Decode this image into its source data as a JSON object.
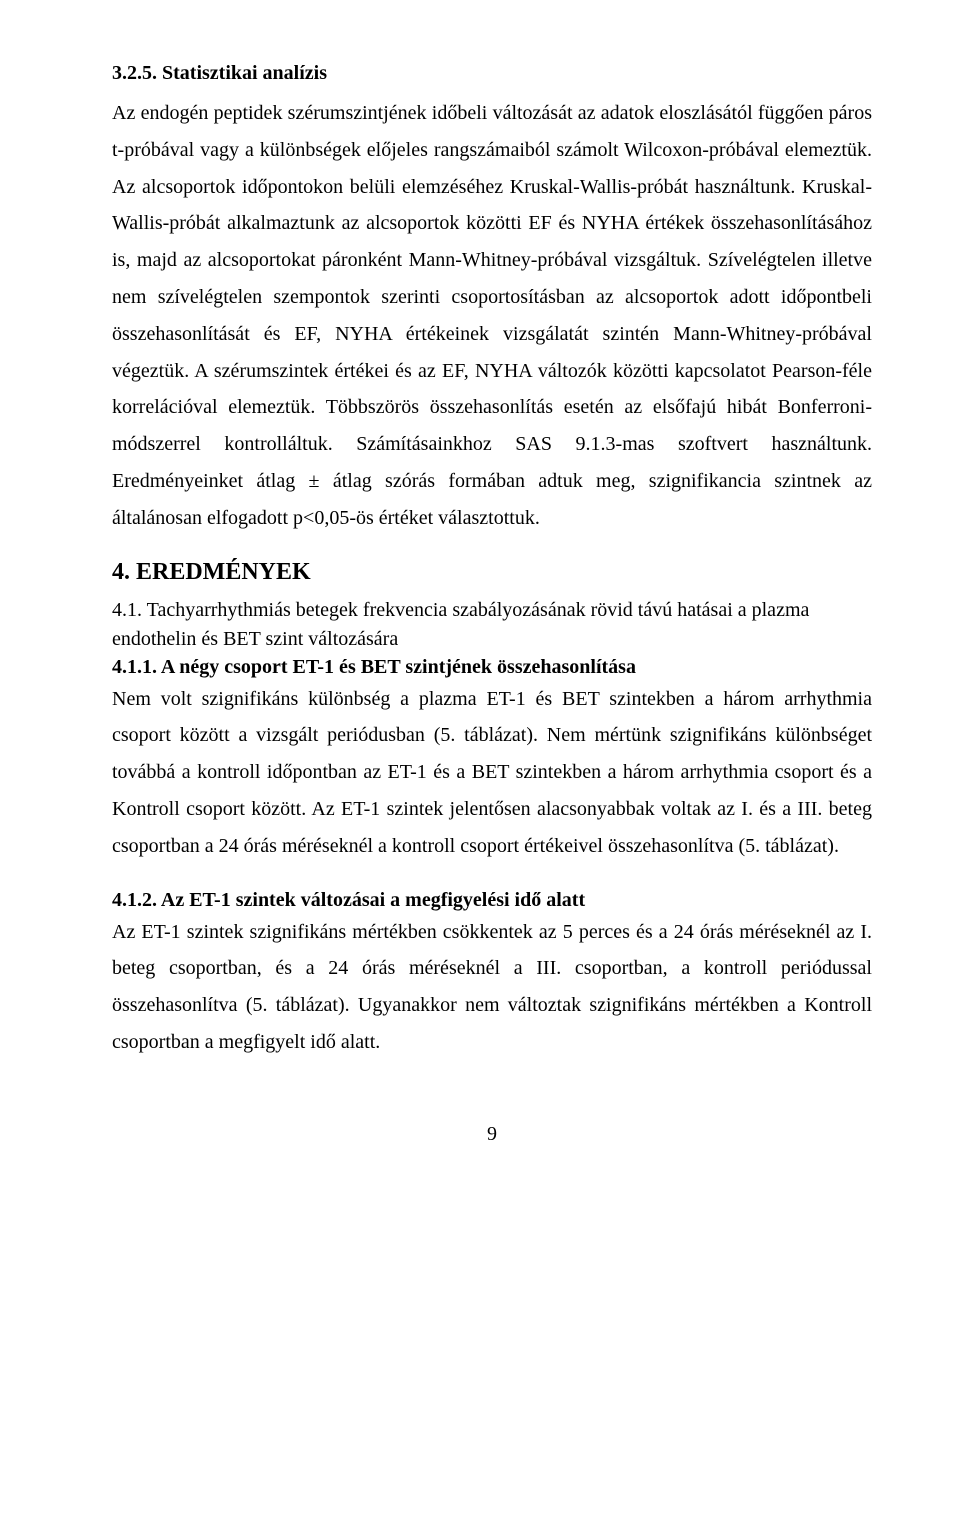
{
  "section_325": {
    "heading": "3.2.5. Statisztikai analízis",
    "body": "Az endogén peptidek szérumszintjének időbeli változását az adatok eloszlásától függően páros t-próbával vagy a különbségek előjeles rangszámaiból számolt Wilcoxon-próbával elemeztük. Az alcsoportok időpontokon belüli elemzéséhez Kruskal-Wallis-próbát használtunk. Kruskal-Wallis-próbát alkalmaztunk az alcsoportok közötti EF és NYHA értékek összehasonlításához is, majd az alcsoportokat páronként Mann-Whitney-próbával vizsgáltuk. Szívelégtelen illetve nem szívelégtelen szempontok szerinti csoportosításban az alcsoportok adott időpontbeli összehasonlítását és EF, NYHA értékeinek vizsgálatát szintén Mann-Whitney-próbával végeztük. A szérumszintek értékei és az EF, NYHA változók közötti kapcsolatot Pearson-féle korrelációval elemeztük. Többszörös összehasonlítás esetén az elsőfajú hibát Bonferroni-módszerrel kontrolláltuk. Számításainkhoz SAS 9.1.3-mas szoftvert használtunk. Eredményeinket átlag ± átlag szórás formában adtuk meg, szignifikancia szintnek az általánosan elfogadott p<0,05-ös értéket választottuk."
  },
  "section_4": {
    "heading": "4. EREDMÉNYEK"
  },
  "section_41": {
    "heading": "4.1. Tachyarrhythmiás betegek frekvencia szabályozásának rövid távú hatásai a plazma endothelin és BET szint változására"
  },
  "section_411": {
    "heading": "4.1.1. A négy csoport ET-1 és BET szintjének összehasonlítása",
    "body": "Nem volt szignifikáns különbség a plazma ET-1 és BET szintekben a három arrhythmia csoport között a vizsgált periódusban (5. táblázat). Nem mértünk szignifikáns különbséget továbbá a kontroll időpontban az ET-1 és a BET szintekben a három arrhythmia csoport és a Kontroll csoport között. Az ET-1 szintek  jelentősen alacsonyabbak voltak az I. és a III. beteg csoportban a 24 órás méréseknél a kontroll csoport értékeivel összehasonlítva (5. táblázat)."
  },
  "section_412": {
    "heading": "4.1.2. Az ET-1 szintek változásai a megfigyelési idő alatt",
    "body": "Az ET-1 szintek szignifikáns mértékben csökkentek az 5 perces és a 24 órás méréseknél az I. beteg csoportban, és a 24 órás méréseknél a III. csoportban, a kontroll periódussal összehasonlítva (5. táblázat). Ugyanakkor nem változtak szignifikáns mértékben a Kontroll csoportban a megfigyelt idő alatt."
  },
  "page_number": "9"
}
